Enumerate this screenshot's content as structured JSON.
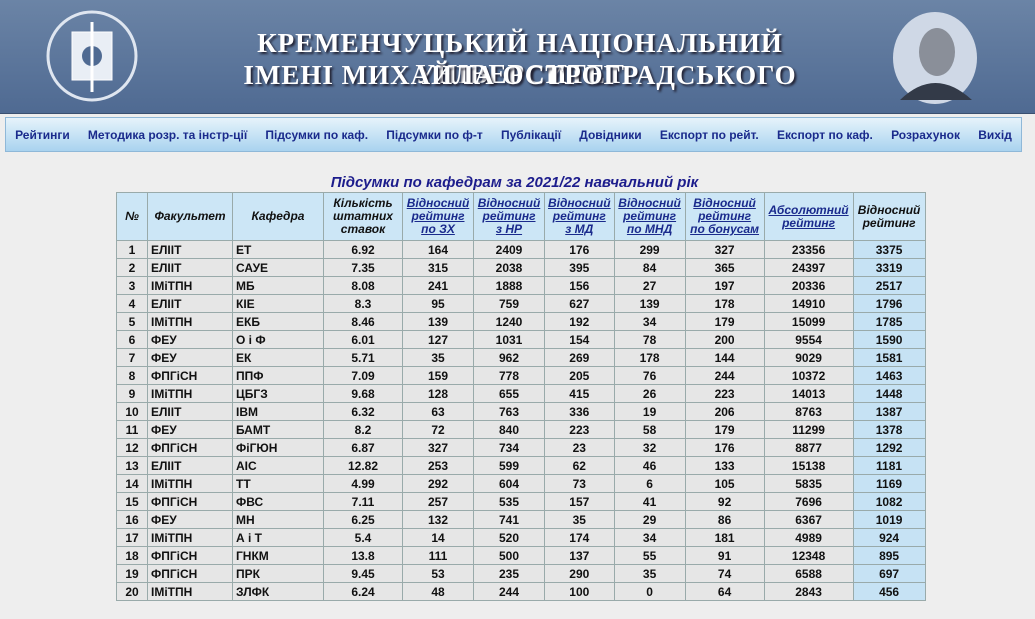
{
  "header": {
    "title_line1": "КРЕМЕНЧУЦЬКИЙ НАЦІОНАЛЬНИЙ УНІВЕРСИТЕТ",
    "title_line2": "ІМЕНІ МИХАЙЛА ОСТРОГРАДСЬКОГО"
  },
  "nav": [
    "Рейтинги",
    "Методика розр. та інстр-ції",
    "Підсумки по каф.",
    "Підсумки по ф-т",
    "Публікації",
    "Довідники",
    "Експорт по рейт.",
    "Експорт по каф.",
    "Розрахунок",
    "Вихід"
  ],
  "table": {
    "title": "Підсумки по кафедрам за 2021/22 навчальний рік",
    "header": [
      [
        "№"
      ],
      [
        "Факультет"
      ],
      [
        "Кафедра"
      ],
      [
        "Кількість",
        "штатних",
        "ставок"
      ],
      [
        "Відносний",
        "рейтинг",
        "по ЗХ"
      ],
      [
        "Відносний",
        "рейтинг",
        "з НР"
      ],
      [
        "Відносний",
        "рейтинг",
        "з МД"
      ],
      [
        "Відносний",
        "рейтинг",
        "по МНД"
      ],
      [
        "Відносний",
        "рейтинг",
        "по бонусам"
      ],
      [
        "Абсолютний",
        "рейтинг"
      ],
      [
        "Відносний",
        "рейтинг"
      ]
    ],
    "header_links": [
      false,
      false,
      false,
      false,
      true,
      true,
      true,
      true,
      true,
      true,
      false
    ],
    "rows": [
      [
        "1",
        "ЕЛІІТ",
        "ЕТ",
        "6.92",
        "164",
        "2409",
        "176",
        "299",
        "327",
        "23356",
        "3375"
      ],
      [
        "2",
        "ЕЛІІТ",
        "САУЕ",
        "7.35",
        "315",
        "2038",
        "395",
        "84",
        "365",
        "24397",
        "3319"
      ],
      [
        "3",
        "ІМіТПН",
        "МБ",
        "8.08",
        "241",
        "1888",
        "156",
        "27",
        "197",
        "20336",
        "2517"
      ],
      [
        "4",
        "ЕЛІІТ",
        "КІЕ",
        "8.3",
        "95",
        "759",
        "627",
        "139",
        "178",
        "14910",
        "1796"
      ],
      [
        "5",
        "ІМіТПН",
        "ЕКБ",
        "8.46",
        "139",
        "1240",
        "192",
        "34",
        "179",
        "15099",
        "1785"
      ],
      [
        "6",
        "ФЕУ",
        "О і Ф",
        "6.01",
        "127",
        "1031",
        "154",
        "78",
        "200",
        "9554",
        "1590"
      ],
      [
        "7",
        "ФЕУ",
        "ЕК",
        "5.71",
        "35",
        "962",
        "269",
        "178",
        "144",
        "9029",
        "1581"
      ],
      [
        "8",
        "ФПГіСН",
        "ППФ",
        "7.09",
        "159",
        "778",
        "205",
        "76",
        "244",
        "10372",
        "1463"
      ],
      [
        "9",
        "ІМіТПН",
        "ЦБГЗ",
        "9.68",
        "128",
        "655",
        "415",
        "26",
        "223",
        "14013",
        "1448"
      ],
      [
        "10",
        "ЕЛІІТ",
        "ІВМ",
        "6.32",
        "63",
        "763",
        "336",
        "19",
        "206",
        "8763",
        "1387"
      ],
      [
        "11",
        "ФЕУ",
        "БАМТ",
        "8.2",
        "72",
        "840",
        "223",
        "58",
        "179",
        "11299",
        "1378"
      ],
      [
        "12",
        "ФПГіСН",
        "ФіГЮН",
        "6.87",
        "327",
        "734",
        "23",
        "32",
        "176",
        "8877",
        "1292"
      ],
      [
        "13",
        "ЕЛІІТ",
        "АІС",
        "12.82",
        "253",
        "599",
        "62",
        "46",
        "133",
        "15138",
        "1181"
      ],
      [
        "14",
        "ІМіТПН",
        "ТТ",
        "4.99",
        "292",
        "604",
        "73",
        "6",
        "105",
        "5835",
        "1169"
      ],
      [
        "15",
        "ФПГіСН",
        "ФВС",
        "7.11",
        "257",
        "535",
        "157",
        "41",
        "92",
        "7696",
        "1082"
      ],
      [
        "16",
        "ФЕУ",
        "МН",
        "6.25",
        "132",
        "741",
        "35",
        "29",
        "86",
        "6367",
        "1019"
      ],
      [
        "17",
        "ІМіТПН",
        "А і Т",
        "5.4",
        "14",
        "520",
        "174",
        "34",
        "181",
        "4989",
        "924"
      ],
      [
        "18",
        "ФПГіСН",
        "ГНКМ",
        "13.8",
        "111",
        "500",
        "137",
        "55",
        "91",
        "12348",
        "895"
      ],
      [
        "19",
        "ФПГіСН",
        "ПРК",
        "9.45",
        "53",
        "235",
        "290",
        "35",
        "74",
        "6588",
        "697"
      ],
      [
        "20",
        "ІМіТПН",
        "ЗЛФК",
        "6.24",
        "48",
        "244",
        "100",
        "0",
        "64",
        "2843",
        "456"
      ]
    ]
  }
}
